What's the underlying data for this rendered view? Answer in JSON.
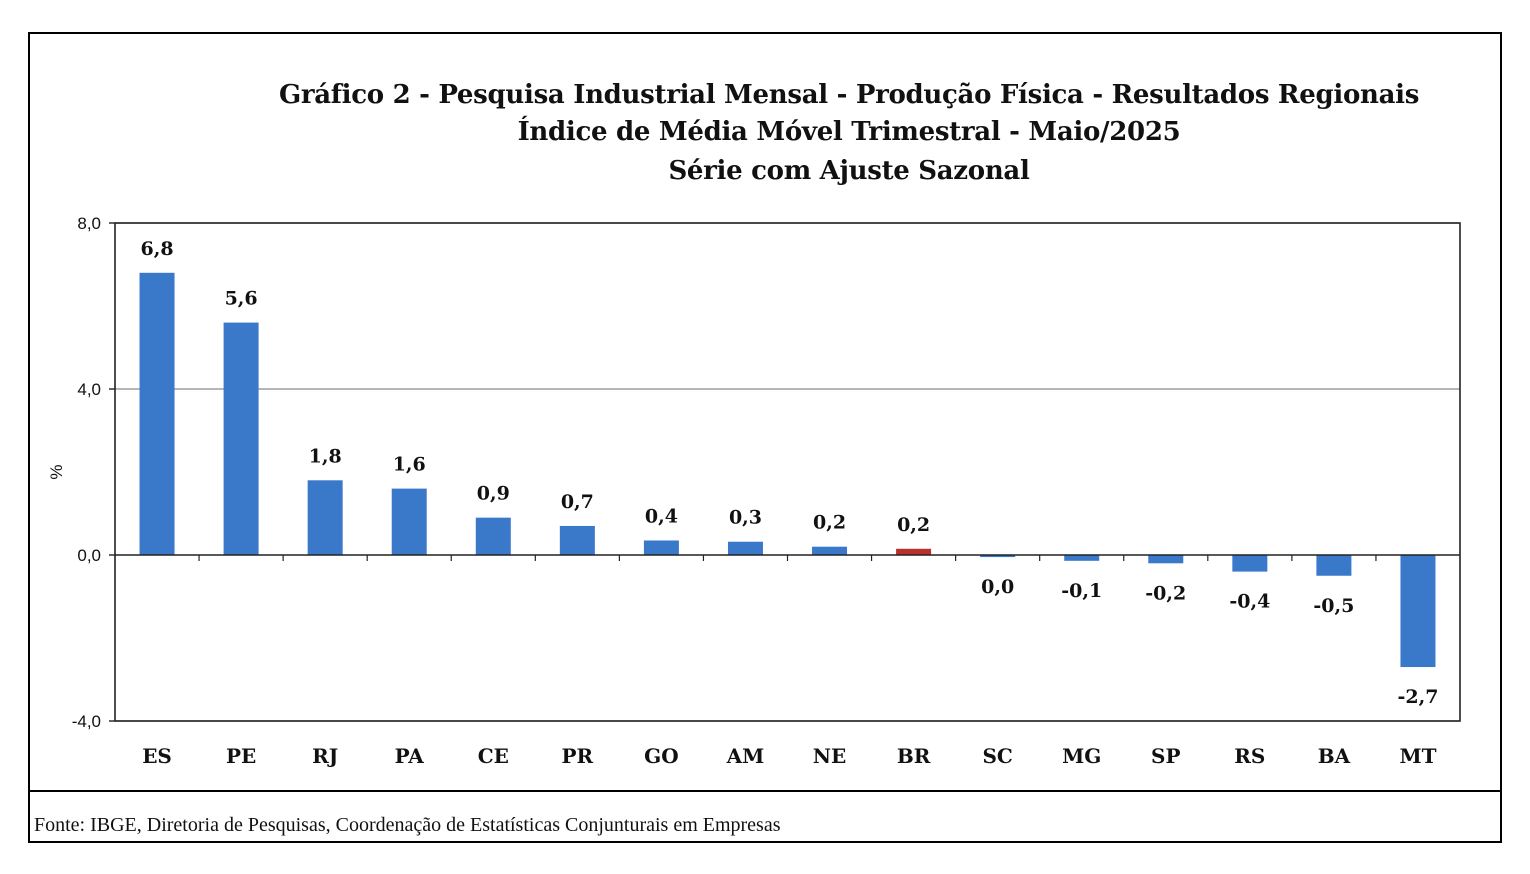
{
  "chart_data": {
    "type": "bar",
    "title": "Gráfico 2 - Pesquisa Industrial Mensal - Produção Física - Resultados Regionais",
    "subtitle1": "Índice de Média Móvel Trimestral - Maio/2025",
    "subtitle2": "Série com Ajuste Sazonal",
    "xlabel": "",
    "ylabel": "%",
    "ylim": [
      -4.0,
      8.0
    ],
    "yticks": [
      "8,0",
      "4,0",
      "0,0",
      "-4,0"
    ],
    "ytick_values": [
      8,
      4,
      0,
      -4
    ],
    "categories": [
      "ES",
      "PE",
      "RJ",
      "PA",
      "CE",
      "PR",
      "GO",
      "AM",
      "NE",
      "BR",
      "SC",
      "MG",
      "SP",
      "RS",
      "BA",
      "MT"
    ],
    "values": [
      6.8,
      5.6,
      1.8,
      1.6,
      0.9,
      0.7,
      0.35,
      0.32,
      0.2,
      0.15,
      -0.05,
      -0.14,
      -0.2,
      -0.4,
      -0.5,
      -2.7
    ],
    "labels": [
      "6,8",
      "5,6",
      "1,8",
      "1,6",
      "0,9",
      "0,7",
      "0,4",
      "0,3",
      "0,2",
      "0,2",
      "0,0",
      "-0,1",
      "-0,2",
      "-0,4",
      "-0,5",
      "-2,7"
    ],
    "highlight_category": "BR",
    "grid": true
  },
  "colors": {
    "bar": "#3a78c9",
    "highlight": "#b8312a"
  },
  "source": "Fonte: IBGE, Diretoria de Pesquisas, Coordenação de Estatísticas Conjunturais em Empresas"
}
